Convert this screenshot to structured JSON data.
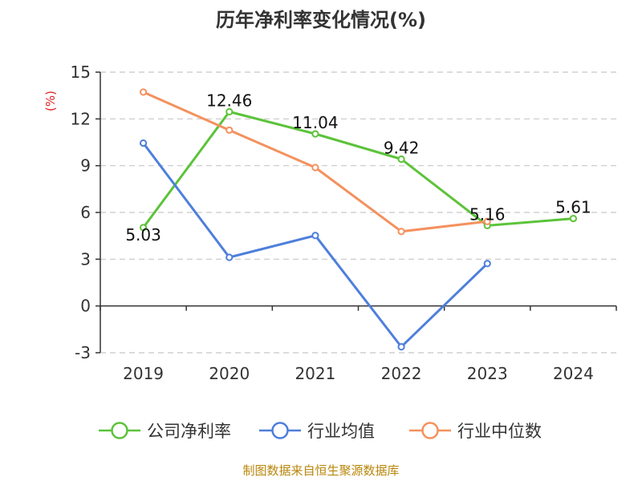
{
  "chart_data": {
    "type": "line",
    "title": "历年净利率变化情况(%)",
    "unit_label": "(%)",
    "categories": [
      "2019",
      "2020",
      "2021",
      "2022",
      "2023",
      "2024"
    ],
    "ylim": [
      -3,
      15
    ],
    "yticks": [
      "15",
      "12",
      "9",
      "6",
      "3",
      "0",
      "-3"
    ],
    "grid": true,
    "legend_position": "bottom",
    "series": [
      {
        "name": "公司净利率",
        "color": "#5cc33a",
        "values": [
          5.03,
          12.46,
          11.04,
          9.42,
          5.16,
          5.61
        ],
        "labels": [
          "5.03",
          "12.46",
          "11.04",
          "9.42",
          "5.16",
          "5.61"
        ]
      },
      {
        "name": "行业均值",
        "color": "#4e7fdb",
        "values": [
          10.45,
          3.12,
          4.52,
          -2.62,
          2.72,
          null
        ]
      },
      {
        "name": "行业中位数",
        "color": "#f4915e",
        "values": [
          13.72,
          11.28,
          8.88,
          4.78,
          5.42,
          null
        ]
      }
    ],
    "source": "制图数据来自恒生聚源数据库"
  }
}
